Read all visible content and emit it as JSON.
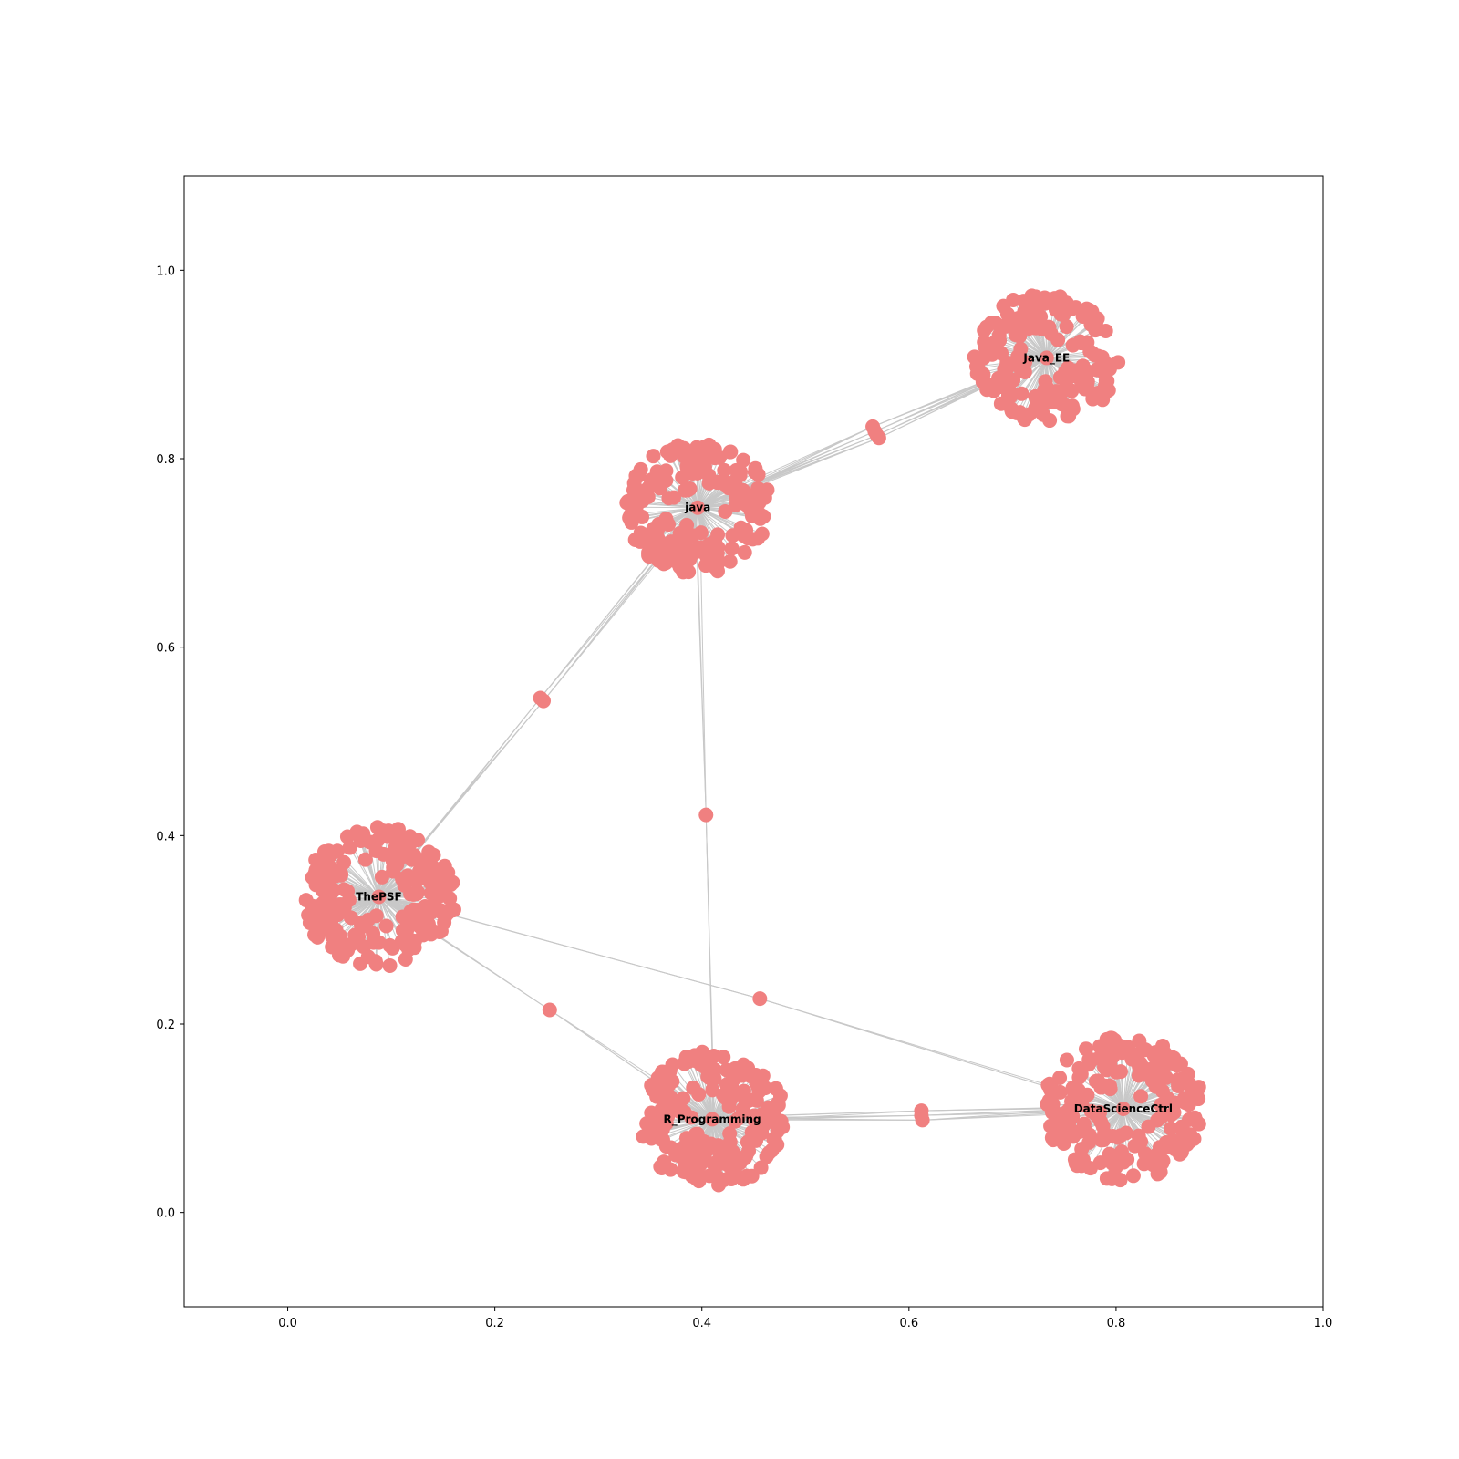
{
  "chart_data": {
    "type": "scatter",
    "title": "",
    "xlabel": "",
    "ylabel": "",
    "xlim": [
      -0.1,
      1.0
    ],
    "ylim": [
      -0.1,
      1.1
    ],
    "x_ticks": [
      "0.0",
      "0.2",
      "0.4",
      "0.6",
      "0.8",
      "1.0"
    ],
    "x_tick_values": [
      0.0,
      0.2,
      0.4,
      0.6,
      0.8,
      1.0
    ],
    "y_ticks": [
      "0.0",
      "0.2",
      "0.4",
      "0.6",
      "0.8",
      "1.0"
    ],
    "y_tick_values": [
      0.0,
      0.2,
      0.4,
      0.6,
      0.8,
      1.0
    ],
    "grid": false,
    "legend": "none",
    "node_color": "#f08080",
    "edge_color": "#c8c8c8",
    "hubs": [
      {
        "label": "java",
        "x": 0.396,
        "y": 0.748,
        "cluster_radius": 0.07,
        "leaf_count": 190
      },
      {
        "label": "Java_EE",
        "x": 0.733,
        "y": 0.907,
        "cluster_radius": 0.07,
        "leaf_count": 175
      },
      {
        "label": "ThePSF",
        "x": 0.088,
        "y": 0.335,
        "cluster_radius": 0.075,
        "leaf_count": 210
      },
      {
        "label": "R_Programming",
        "x": 0.41,
        "y": 0.099,
        "cluster_radius": 0.072,
        "leaf_count": 195
      },
      {
        "label": "DataScienceCtrl",
        "x": 0.807,
        "y": 0.11,
        "cluster_radius": 0.077,
        "leaf_count": 200
      }
    ],
    "bridge_nodes": [
      {
        "x": 0.565,
        "y": 0.834,
        "between": [
          "java",
          "Java_EE"
        ]
      },
      {
        "x": 0.567,
        "y": 0.829,
        "between": [
          "java",
          "Java_EE"
        ]
      },
      {
        "x": 0.569,
        "y": 0.825,
        "between": [
          "java",
          "Java_EE"
        ]
      },
      {
        "x": 0.571,
        "y": 0.822,
        "between": [
          "java",
          "Java_EE"
        ]
      },
      {
        "x": 0.244,
        "y": 0.546,
        "between": [
          "java",
          "ThePSF"
        ]
      },
      {
        "x": 0.247,
        "y": 0.543,
        "between": [
          "java",
          "ThePSF"
        ]
      },
      {
        "x": 0.404,
        "y": 0.422,
        "between": [
          "java",
          "R_Programming"
        ]
      },
      {
        "x": 0.253,
        "y": 0.215,
        "between": [
          "ThePSF",
          "R_Programming"
        ]
      },
      {
        "x": 0.456,
        "y": 0.227,
        "between": [
          "ThePSF",
          "DataScienceCtrl"
        ]
      },
      {
        "x": 0.612,
        "y": 0.108,
        "between": [
          "R_Programming",
          "DataScienceCtrl"
        ]
      },
      {
        "x": 0.612,
        "y": 0.103,
        "between": [
          "R_Programming",
          "DataScienceCtrl"
        ]
      },
      {
        "x": 0.613,
        "y": 0.098,
        "between": [
          "R_Programming",
          "DataScienceCtrl"
        ]
      }
    ]
  }
}
